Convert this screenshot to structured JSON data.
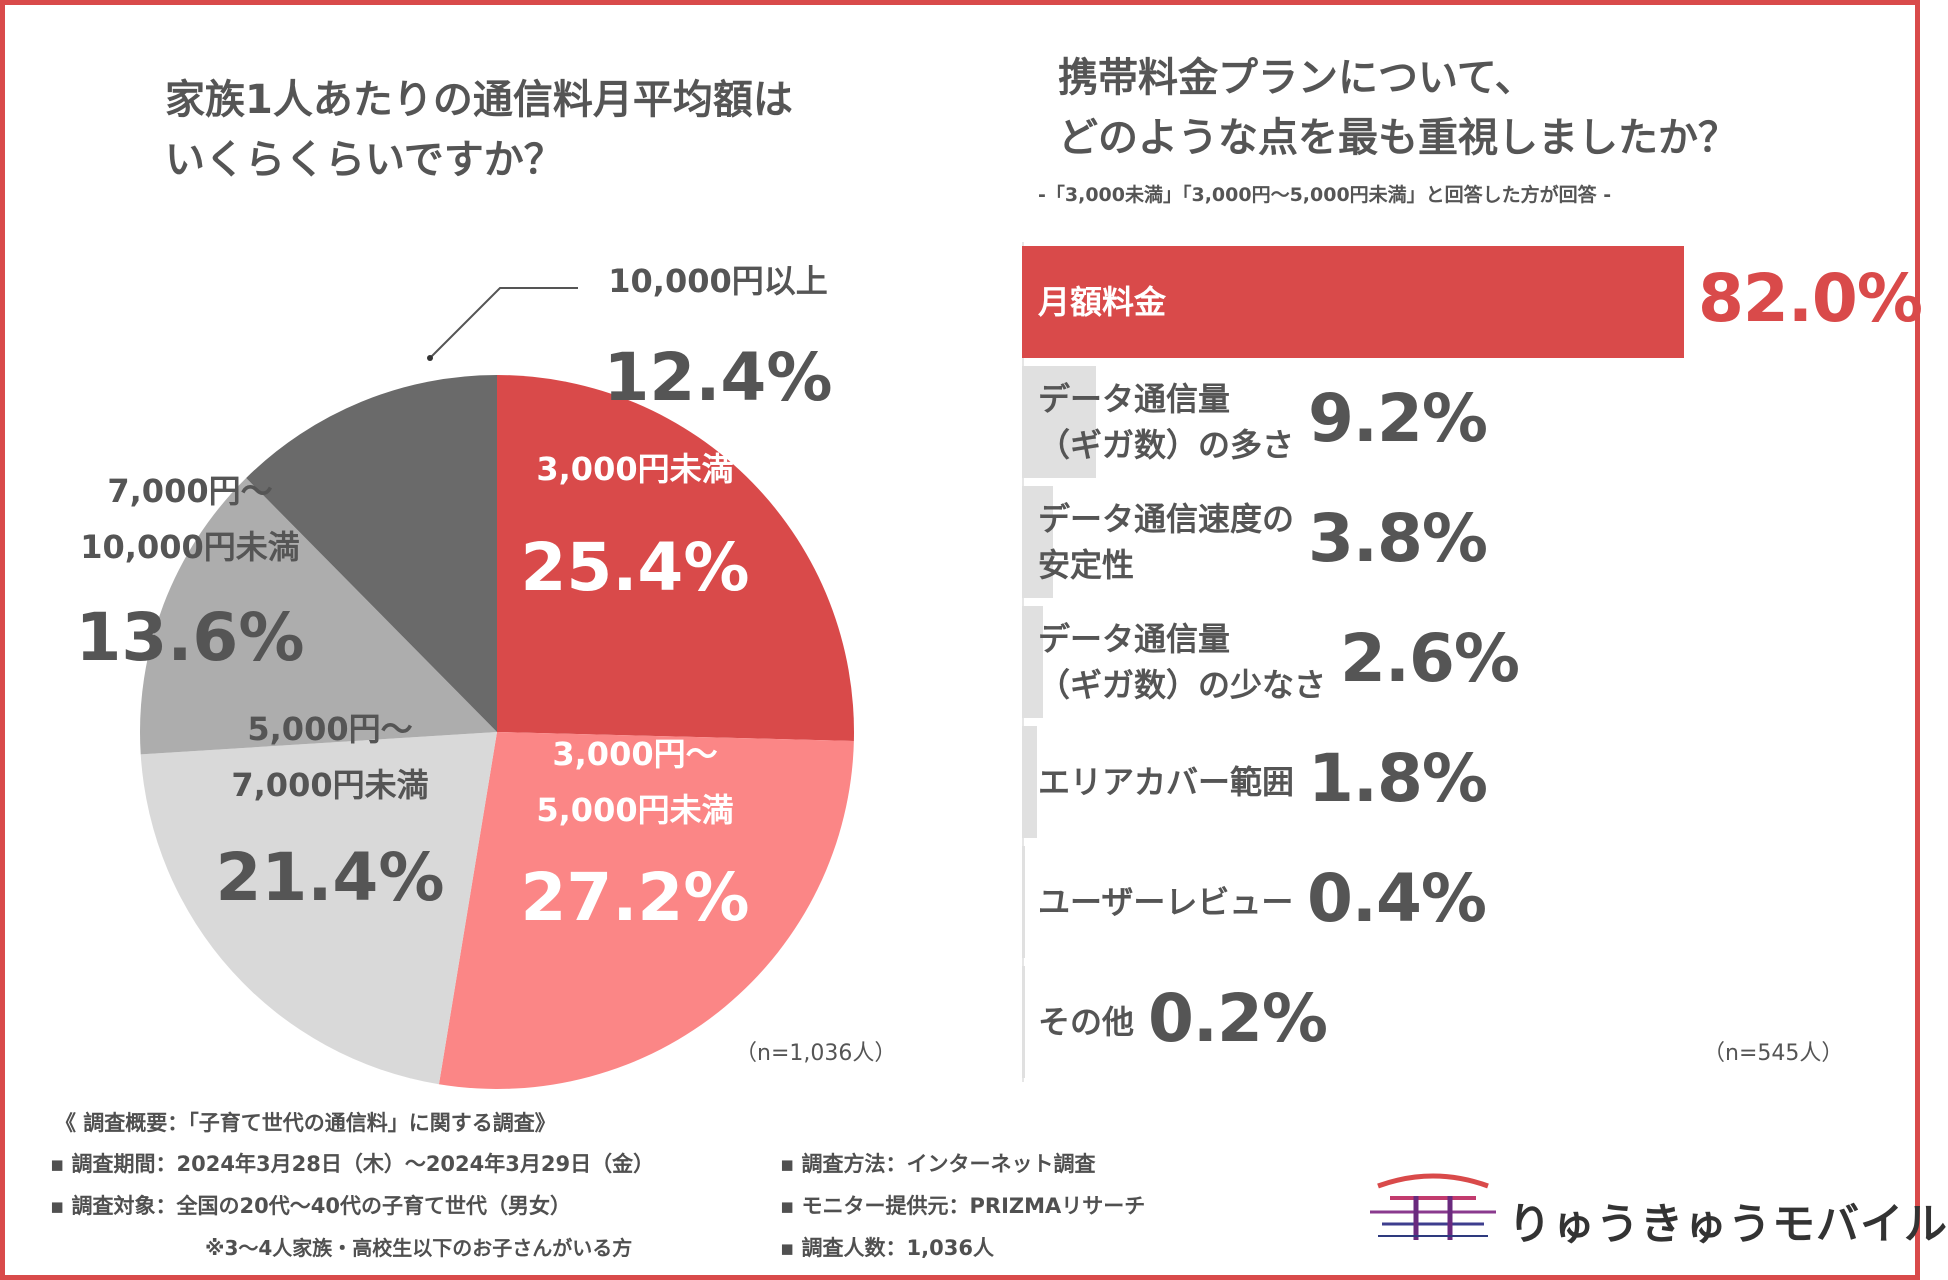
{
  "left": {
    "title_line1": "家族1人あたりの通信料月平均額は",
    "title_line2": "いくらくらいですか？",
    "n_note": "（n=1,036人）"
  },
  "right": {
    "title_line1": "携帯料金プランについて、",
    "title_line2": "どのような点を最も重視しましたか？",
    "subtitle": "-「3,000未満」「3,000円～5,000円未満」と回答した方が回答 -",
    "n_note": "（n=545人）"
  },
  "chart_data": [
    {
      "type": "pie",
      "title": "家族1人あたりの通信料月平均額はいくらくらいですか？",
      "slices": [
        {
          "label_lines": [
            "3,000円未満"
          ],
          "value": 25.4,
          "display": "25.4%",
          "color": "#d94a4a"
        },
        {
          "label_lines": [
            "3,000円～",
            "5,000円未満"
          ],
          "value": 27.2,
          "display": "27.2%",
          "color": "#fb8686"
        },
        {
          "label_lines": [
            "5,000円～",
            "7,000円未満"
          ],
          "value": 21.4,
          "display": "21.4%",
          "color": "#d9d9d9"
        },
        {
          "label_lines": [
            "7,000円～",
            "10,000円未満"
          ],
          "value": 13.6,
          "display": "13.6%",
          "color": "#adadad"
        },
        {
          "label_lines": [
            "10,000円以上"
          ],
          "value": 12.4,
          "display": "12.4%",
          "color": "#6a6a6a"
        }
      ]
    },
    {
      "type": "bar",
      "orientation": "horizontal",
      "title": "携帯料金プランについて、どのような点を最も重視しましたか？",
      "xlim": [
        0,
        100
      ],
      "bars": [
        {
          "label_lines": [
            "月額料金"
          ],
          "value": 82.0,
          "display": "82.0%"
        },
        {
          "label_lines": [
            "データ通信量",
            "（ギガ数）の多さ"
          ],
          "value": 9.2,
          "display": "9.2%"
        },
        {
          "label_lines": [
            "データ通信速度の",
            "安定性"
          ],
          "value": 3.8,
          "display": "3.8%"
        },
        {
          "label_lines": [
            "データ通信量",
            "（ギガ数）の少なさ"
          ],
          "value": 2.6,
          "display": "2.6%"
        },
        {
          "label_lines": [
            "エリアカバー範囲"
          ],
          "value": 1.8,
          "display": "1.8%"
        },
        {
          "label_lines": [
            "ユーザーレビュー"
          ],
          "value": 0.4,
          "display": "0.4%"
        },
        {
          "label_lines": [
            "その他"
          ],
          "value": 0.2,
          "display": "0.2%"
        }
      ],
      "colors": {
        "top": "#d94a4a",
        "others": "#e0e0e0"
      }
    }
  ],
  "footer": {
    "heading": "《 調査概要：「子育て世代の通信料」に関する調査》",
    "period": "▪ 調査期間：2024年3月28日（木）～2024年3月29日（金）",
    "target": "▪ 調査対象：全国の20代～40代の子育て世代（男女）",
    "target_note": "※3～4人家族・高校生以下のお子さんがいる方",
    "method": "▪ 調査方法：インターネット調査",
    "provider": "▪ モニター提供元：PRIZMAリサーチ",
    "count": "▪ 調査人数：1,036人"
  },
  "logo": {
    "text": "りゅうきゅうモバイル"
  },
  "colors": {
    "accent": "#d94a4a",
    "text": "#555555"
  }
}
